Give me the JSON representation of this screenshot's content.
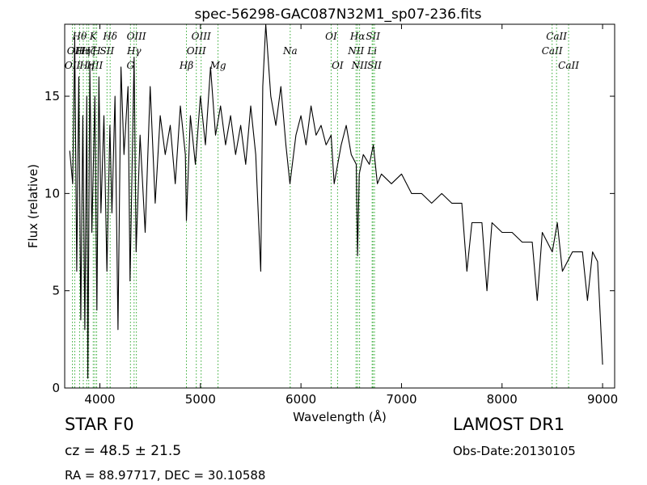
{
  "chart_data": {
    "type": "line",
    "title": "spec-56298-GAC087N32M1_sp07-236.fits",
    "xlabel": "Wavelength (Å)",
    "ylabel": "Flux (relative)",
    "xlim": [
      3650,
      9120
    ],
    "ylim": [
      0,
      18.7
    ],
    "xticks": [
      4000,
      5000,
      6000,
      7000,
      8000,
      9000
    ],
    "yticks": [
      0,
      5,
      10,
      15
    ],
    "grid": false,
    "colors": {
      "spectrum": "#000000",
      "lines": "#33aa33"
    },
    "spectrum": [
      [
        3700,
        12.2
      ],
      [
        3730,
        10.5
      ],
      [
        3750,
        18.0
      ],
      [
        3770,
        6.0
      ],
      [
        3790,
        16.0
      ],
      [
        3810,
        3.5
      ],
      [
        3830,
        14.0
      ],
      [
        3850,
        3.0
      ],
      [
        3870,
        15.0
      ],
      [
        3880,
        0.5
      ],
      [
        3900,
        16.5
      ],
      [
        3920,
        8.0
      ],
      [
        3950,
        15.0
      ],
      [
        3970,
        4.0
      ],
      [
        3990,
        16.0
      ],
      [
        4010,
        9.0
      ],
      [
        4040,
        14.0
      ],
      [
        4070,
        6.0
      ],
      [
        4100,
        13.5
      ],
      [
        4120,
        9.0
      ],
      [
        4150,
        15.0
      ],
      [
        4180,
        3.0
      ],
      [
        4210,
        16.5
      ],
      [
        4240,
        12.0
      ],
      [
        4280,
        15.5
      ],
      [
        4300,
        5.5
      ],
      [
        4340,
        17.0
      ],
      [
        4360,
        7.0
      ],
      [
        4400,
        13.0
      ],
      [
        4450,
        8.0
      ],
      [
        4500,
        15.5
      ],
      [
        4550,
        9.5
      ],
      [
        4600,
        14.0
      ],
      [
        4650,
        12.0
      ],
      [
        4700,
        13.5
      ],
      [
        4750,
        10.5
      ],
      [
        4800,
        14.5
      ],
      [
        4850,
        12.0
      ],
      [
        4861,
        8.6
      ],
      [
        4900,
        14.0
      ],
      [
        4950,
        11.5
      ],
      [
        5000,
        15.0
      ],
      [
        5050,
        12.5
      ],
      [
        5100,
        16.5
      ],
      [
        5150,
        13.0
      ],
      [
        5200,
        14.5
      ],
      [
        5250,
        12.5
      ],
      [
        5300,
        14.0
      ],
      [
        5350,
        12.0
      ],
      [
        5400,
        13.5
      ],
      [
        5450,
        11.5
      ],
      [
        5500,
        14.5
      ],
      [
        5550,
        12.0
      ],
      [
        5600,
        6.0
      ],
      [
        5620,
        15.5
      ],
      [
        5650,
        18.7
      ],
      [
        5700,
        15.0
      ],
      [
        5750,
        13.5
      ],
      [
        5800,
        15.5
      ],
      [
        5850,
        12.5
      ],
      [
        5890,
        10.5
      ],
      [
        5950,
        13.0
      ],
      [
        6000,
        14.0
      ],
      [
        6050,
        12.5
      ],
      [
        6100,
        14.5
      ],
      [
        6150,
        13.0
      ],
      [
        6200,
        13.5
      ],
      [
        6250,
        12.5
      ],
      [
        6300,
        13.0
      ],
      [
        6330,
        10.5
      ],
      [
        6400,
        12.5
      ],
      [
        6450,
        13.5
      ],
      [
        6500,
        12.0
      ],
      [
        6550,
        11.5
      ],
      [
        6563,
        6.8
      ],
      [
        6580,
        11.0
      ],
      [
        6620,
        12.0
      ],
      [
        6680,
        11.5
      ],
      [
        6720,
        12.5
      ],
      [
        6760,
        10.5
      ],
      [
        6800,
        11.0
      ],
      [
        6900,
        10.5
      ],
      [
        7000,
        11.0
      ],
      [
        7100,
        10.0
      ],
      [
        7200,
        10.0
      ],
      [
        7300,
        9.5
      ],
      [
        7400,
        10.0
      ],
      [
        7500,
        9.5
      ],
      [
        7600,
        9.5
      ],
      [
        7650,
        6.0
      ],
      [
        7700,
        8.5
      ],
      [
        7800,
        8.5
      ],
      [
        7850,
        5.0
      ],
      [
        7900,
        8.5
      ],
      [
        8000,
        8.0
      ],
      [
        8100,
        8.0
      ],
      [
        8200,
        7.5
      ],
      [
        8300,
        7.5
      ],
      [
        8350,
        4.5
      ],
      [
        8400,
        8.0
      ],
      [
        8500,
        7.0
      ],
      [
        8550,
        8.5
      ],
      [
        8600,
        6.0
      ],
      [
        8700,
        7.0
      ],
      [
        8800,
        7.0
      ],
      [
        8850,
        4.5
      ],
      [
        8900,
        7.0
      ],
      [
        8950,
        6.5
      ],
      [
        9000,
        1.2
      ]
    ],
    "lines": [
      {
        "wavelength": 3727,
        "labels": [
          "OII"
        ],
        "row": 2
      },
      {
        "wavelength": 3750,
        "labels": [
          "OII"
        ],
        "row": 1
      },
      {
        "wavelength": 3798,
        "labels": [
          "Hθ"
        ],
        "row": 0
      },
      {
        "wavelength": 3835,
        "labels": [
          "Hη"
        ],
        "row": 1
      },
      {
        "wavelength": 3869,
        "labels": [
          "Hη"
        ],
        "row": 2
      },
      {
        "wavelength": 3889,
        "labels": [
          "Hζ"
        ],
        "row": 1
      },
      {
        "wavelength": 3934,
        "labels": [
          "K"
        ],
        "row": 0
      },
      {
        "wavelength": 3950,
        "labels": [
          "HII"
        ],
        "row": 2
      },
      {
        "wavelength": 3968,
        "labels": [
          "H"
        ],
        "row": 1
      },
      {
        "wavelength": 4071,
        "labels": [
          "SII"
        ],
        "row": 1
      },
      {
        "wavelength": 4102,
        "labels": [
          "Hδ"
        ],
        "row": 0
      },
      {
        "wavelength": 4304,
        "labels": [
          "G"
        ],
        "row": 2
      },
      {
        "wavelength": 4340,
        "labels": [
          "Hγ"
        ],
        "row": 1
      },
      {
        "wavelength": 4363,
        "labels": [
          "OIII"
        ],
        "row": 0
      },
      {
        "wavelength": 4861,
        "labels": [
          "Hβ"
        ],
        "row": 2
      },
      {
        "wavelength": 4959,
        "labels": [
          "OIII"
        ],
        "row": 1
      },
      {
        "wavelength": 5007,
        "labels": [
          "OIII"
        ],
        "row": 0
      },
      {
        "wavelength": 5175,
        "labels": [
          "Mg"
        ],
        "row": 2
      },
      {
        "wavelength": 5893,
        "labels": [
          "Na"
        ],
        "row": 1
      },
      {
        "wavelength": 6300,
        "labels": [
          "OI"
        ],
        "row": 0
      },
      {
        "wavelength": 6364,
        "labels": [
          "OI"
        ],
        "row": 2
      },
      {
        "wavelength": 6548,
        "labels": [
          "NII"
        ],
        "row": 1
      },
      {
        "wavelength": 6563,
        "labels": [
          "Hα"
        ],
        "row": 0
      },
      {
        "wavelength": 6583,
        "labels": [
          "NII"
        ],
        "row": 2
      },
      {
        "wavelength": 6708,
        "labels": [
          "Li"
        ],
        "row": 1
      },
      {
        "wavelength": 6716,
        "labels": [
          "SII"
        ],
        "row": 0
      },
      {
        "wavelength": 6731,
        "labels": [
          "SII"
        ],
        "row": 2
      },
      {
        "wavelength": 8498,
        "labels": [
          "CaII"
        ],
        "row": 1
      },
      {
        "wavelength": 8542,
        "labels": [
          "CaII"
        ],
        "row": 0
      },
      {
        "wavelength": 8662,
        "labels": [
          "CaII"
        ],
        "row": 2
      }
    ]
  },
  "info": {
    "object_class": "STAR   F0",
    "cz": "cz = 48.5  ± 21.5",
    "radec": "RA = 88.97717, DEC = 30.10588",
    "survey": "LAMOST DR1",
    "obs_date": "Obs-Date:20130105"
  }
}
